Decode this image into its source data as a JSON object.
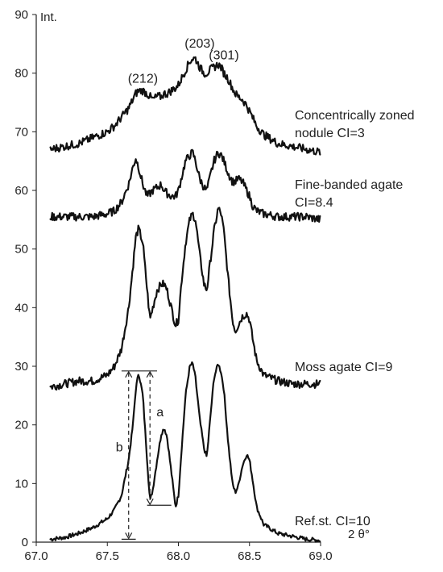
{
  "chart_data": {
    "type": "line",
    "ylabel": "Int.",
    "xlabel": "2 θ°",
    "xlim": [
      67.0,
      69.0
    ],
    "ylim": [
      0,
      90
    ],
    "xticks": [
      "67.0",
      "67.5",
      "68.0",
      "68.5",
      "69.0"
    ],
    "yticks": [
      "0",
      "10",
      "20",
      "30",
      "40",
      "50",
      "60",
      "70",
      "80",
      "90"
    ],
    "peak_labels": [
      {
        "text": "(212)",
        "x": 67.75,
        "y": 77
      },
      {
        "text": "(203)",
        "x": 68.15,
        "y": 83
      },
      {
        "text": "(301)",
        "x": 68.32,
        "y": 81
      }
    ],
    "series": [
      {
        "name": "Ref.st. CI=10",
        "label_lines": [
          "Ref.st. CI=10"
        ],
        "x": [
          67.1,
          67.2,
          67.3,
          67.4,
          67.5,
          67.55,
          67.6,
          67.65,
          67.68,
          67.7,
          67.72,
          67.75,
          67.78,
          67.8,
          67.82,
          67.85,
          67.88,
          67.9,
          67.92,
          67.95,
          67.98,
          68.0,
          68.02,
          68.05,
          68.08,
          68.1,
          68.12,
          68.15,
          68.18,
          68.2,
          68.22,
          68.25,
          68.28,
          68.3,
          68.32,
          68.35,
          68.38,
          68.4,
          68.42,
          68.45,
          68.48,
          68.5,
          68.52,
          68.55,
          68.6,
          68.7,
          68.8,
          68.9,
          69.0
        ],
        "y": [
          0.5,
          0.8,
          1.5,
          2.5,
          4.0,
          5.5,
          8.0,
          14.0,
          20.0,
          26.0,
          29.0,
          25.0,
          14.0,
          7.0,
          9.0,
          14.0,
          18.5,
          19.5,
          18.0,
          12.0,
          6.0,
          8.0,
          15.0,
          25.0,
          30.0,
          30.5,
          28.0,
          21.0,
          16.0,
          14.5,
          20.0,
          28.0,
          30.5,
          29.0,
          26.0,
          17.0,
          10.0,
          8.5,
          9.5,
          13.0,
          15.0,
          14.0,
          11.0,
          6.0,
          3.0,
          1.5,
          1.0,
          0.5,
          0.3
        ]
      },
      {
        "name": "Moss agate CI=9",
        "label_lines": [
          "Moss agate CI=9"
        ],
        "x": [
          67.1,
          67.2,
          67.3,
          67.4,
          67.5,
          67.55,
          67.6,
          67.65,
          67.68,
          67.7,
          67.72,
          67.75,
          67.78,
          67.8,
          67.82,
          67.85,
          67.88,
          67.9,
          67.92,
          67.95,
          67.98,
          68.0,
          68.02,
          68.05,
          68.08,
          68.1,
          68.12,
          68.15,
          68.18,
          68.2,
          68.22,
          68.25,
          68.28,
          68.3,
          68.32,
          68.35,
          68.38,
          68.4,
          68.42,
          68.45,
          68.48,
          68.5,
          68.52,
          68.55,
          68.6,
          68.7,
          68.8,
          68.9,
          69.0
        ],
        "y": [
          26.5,
          27.0,
          27.5,
          27.5,
          28.5,
          30.0,
          33.0,
          40.0,
          47.0,
          52.0,
          53.5,
          51.0,
          43.0,
          38.0,
          40.0,
          43.0,
          44.0,
          44.0,
          43.0,
          40.0,
          37.0,
          38.0,
          44.0,
          51.0,
          55.0,
          56.0,
          55.0,
          49.0,
          44.0,
          43.0,
          47.0,
          53.0,
          57.0,
          56.0,
          53.0,
          45.0,
          38.0,
          36.0,
          37.0,
          38.5,
          39.0,
          38.0,
          35.0,
          31.0,
          28.5,
          27.5,
          27.0,
          27.0,
          27.0
        ]
      },
      {
        "name": "Fine-banded agate CI=8.4",
        "label_lines": [
          "Fine-banded agate",
          "CI=8.4"
        ],
        "x": [
          67.1,
          67.2,
          67.3,
          67.4,
          67.5,
          67.55,
          67.6,
          67.65,
          67.68,
          67.7,
          67.72,
          67.75,
          67.78,
          67.8,
          67.82,
          67.85,
          67.88,
          67.9,
          67.92,
          67.95,
          67.98,
          68.0,
          68.02,
          68.05,
          68.08,
          68.1,
          68.12,
          68.15,
          68.18,
          68.2,
          68.22,
          68.25,
          68.28,
          68.3,
          68.32,
          68.35,
          68.38,
          68.4,
          68.42,
          68.45,
          68.48,
          68.5,
          68.52,
          68.55,
          68.6,
          68.7,
          68.8,
          68.9,
          69.0
        ],
        "y": [
          55.5,
          55.5,
          55.5,
          55.5,
          56.0,
          56.5,
          58.0,
          61.0,
          64.0,
          65.5,
          64.0,
          61.0,
          59.0,
          59.5,
          60.0,
          60.5,
          61.0,
          60.0,
          59.5,
          59.0,
          59.0,
          60.0,
          62.0,
          65.0,
          66.0,
          66.5,
          65.0,
          62.0,
          60.5,
          60.0,
          62.0,
          65.0,
          66.5,
          66.0,
          65.0,
          63.0,
          61.5,
          61.5,
          62.0,
          61.5,
          60.0,
          59.0,
          57.5,
          56.5,
          56.0,
          55.5,
          55.5,
          55.5,
          55.0
        ]
      },
      {
        "name": "Concentrically zoned nodule CI=3",
        "label_lines": [
          "Concentrically zoned",
          "nodule CI=3"
        ],
        "x": [
          67.1,
          67.2,
          67.3,
          67.4,
          67.5,
          67.55,
          67.6,
          67.65,
          67.68,
          67.7,
          67.72,
          67.75,
          67.78,
          67.8,
          67.82,
          67.85,
          67.88,
          67.9,
          67.92,
          67.95,
          67.98,
          68.0,
          68.02,
          68.05,
          68.08,
          68.1,
          68.12,
          68.15,
          68.18,
          68.2,
          68.22,
          68.25,
          68.28,
          68.3,
          68.32,
          68.35,
          68.38,
          68.4,
          68.42,
          68.45,
          68.48,
          68.5,
          68.52,
          68.55,
          68.6,
          68.7,
          68.8,
          68.9,
          69.0
        ],
        "y": [
          67.0,
          67.5,
          68.0,
          69.0,
          70.0,
          71.0,
          72.5,
          74.0,
          75.5,
          76.5,
          77.0,
          77.0,
          76.5,
          76.0,
          75.5,
          76.0,
          76.0,
          76.5,
          76.5,
          77.0,
          77.5,
          78.0,
          79.0,
          80.5,
          82.0,
          82.5,
          82.5,
          81.0,
          80.0,
          80.0,
          80.5,
          81.0,
          81.5,
          81.0,
          80.0,
          79.0,
          77.5,
          76.5,
          76.0,
          75.5,
          74.5,
          73.5,
          72.5,
          71.0,
          69.5,
          68.0,
          67.5,
          67.0,
          66.5
        ]
      }
    ],
    "annotations": [
      {
        "text": "a",
        "description_lines": "ref-peak-to-valley"
      },
      {
        "text": "b",
        "description_lines": "ref-peak-to-baseline"
      }
    ],
    "grid": false,
    "legend": "none"
  }
}
